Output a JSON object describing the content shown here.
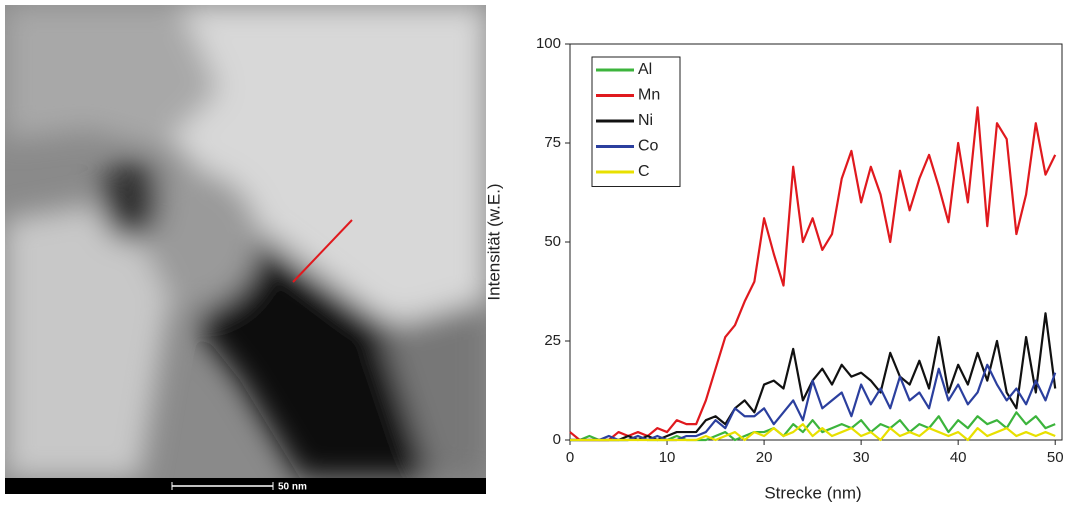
{
  "image": {
    "scale_bar_label": "50 nm"
  },
  "chart_data": {
    "type": "line",
    "xlabel": "Strecke (nm)",
    "ylabel": "Intensität (w.E.)",
    "x": [
      0,
      1,
      2,
      3,
      4,
      5,
      6,
      7,
      8,
      9,
      10,
      11,
      12,
      13,
      14,
      15,
      16,
      17,
      18,
      19,
      20,
      21,
      22,
      23,
      24,
      25,
      26,
      27,
      28,
      29,
      30,
      31,
      32,
      33,
      34,
      35,
      36,
      37,
      38,
      39,
      40,
      41,
      42,
      43,
      44,
      45,
      46,
      47,
      48,
      49,
      50
    ],
    "xlim": [
      0,
      50.7
    ],
    "ylim": [
      0,
      100
    ],
    "xticks": [
      0,
      10,
      20,
      30,
      40,
      50
    ],
    "yticks": [
      0,
      25,
      50,
      75,
      100
    ],
    "legend": "upper-left",
    "series": [
      {
        "name": "Al",
        "color": "#3cb43c",
        "values": [
          0,
          0,
          1,
          0,
          0,
          0,
          0,
          1,
          0,
          0,
          0,
          1,
          0,
          0,
          0,
          1,
          2,
          0,
          1,
          2,
          2,
          3,
          1,
          4,
          2,
          5,
          2,
          3,
          4,
          3,
          5,
          2,
          4,
          3,
          5,
          2,
          4,
          3,
          6,
          2,
          5,
          3,
          6,
          4,
          5,
          3,
          7,
          4,
          6,
          3,
          4
        ]
      },
      {
        "name": "Mn",
        "color": "#e0191e",
        "values": [
          2,
          0,
          0,
          0,
          0,
          2,
          1,
          2,
          1,
          3,
          2,
          5,
          4,
          4,
          10,
          18,
          26,
          29,
          35,
          40,
          56,
          47,
          39,
          69,
          50,
          56,
          48,
          52,
          66,
          73,
          60,
          69,
          62,
          50,
          68,
          58,
          66,
          72,
          64,
          55,
          75,
          60,
          84,
          54,
          80,
          76,
          52,
          62,
          80,
          67,
          72
        ]
      },
      {
        "name": "Ni",
        "color": "#111111",
        "values": [
          0,
          0,
          0,
          0,
          0,
          0,
          1,
          0,
          1,
          0,
          1,
          2,
          2,
          2,
          5,
          6,
          4,
          8,
          10,
          7,
          14,
          15,
          13,
          23,
          10,
          15,
          18,
          14,
          19,
          16,
          17,
          15,
          12,
          22,
          16,
          14,
          20,
          13,
          26,
          12,
          19,
          14,
          22,
          15,
          25,
          12,
          8,
          26,
          12,
          32,
          13
        ]
      },
      {
        "name": "Co",
        "color": "#2b3f9e",
        "values": [
          0,
          0,
          0,
          0,
          1,
          0,
          0,
          1,
          0,
          1,
          0,
          0,
          1,
          1,
          2,
          5,
          3,
          8,
          6,
          6,
          8,
          4,
          7,
          10,
          5,
          15,
          8,
          10,
          12,
          6,
          14,
          9,
          13,
          8,
          16,
          10,
          12,
          8,
          18,
          10,
          14,
          9,
          12,
          19,
          14,
          10,
          13,
          9,
          15,
          10,
          17
        ]
      },
      {
        "name": "C",
        "color": "#e8e000",
        "values": [
          0,
          0,
          0,
          0,
          0,
          0,
          0,
          0,
          0,
          0,
          0,
          0,
          0,
          0,
          1,
          0,
          1,
          2,
          0,
          2,
          1,
          3,
          1,
          2,
          4,
          1,
          3,
          1,
          2,
          3,
          1,
          2,
          0,
          3,
          1,
          2,
          1,
          3,
          2,
          1,
          2,
          0,
          3,
          1,
          2,
          3,
          1,
          2,
          1,
          2,
          1
        ]
      }
    ]
  }
}
